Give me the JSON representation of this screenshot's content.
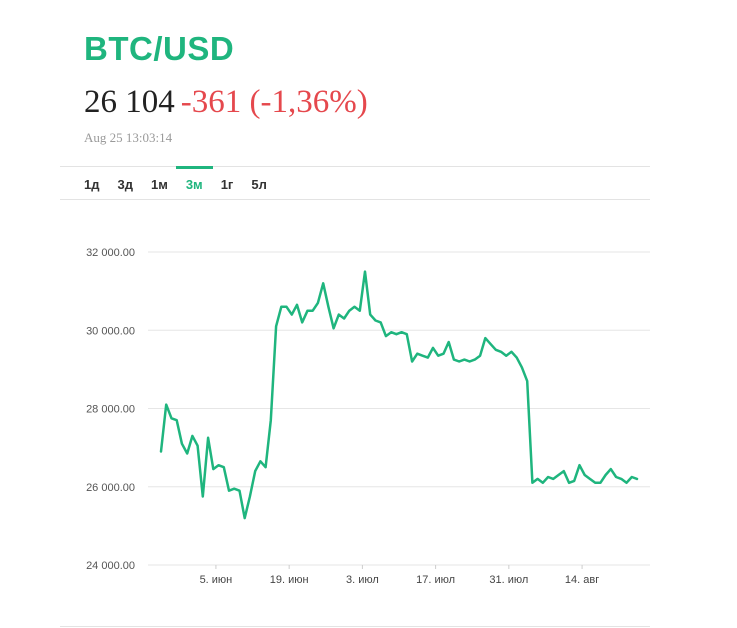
{
  "header": {
    "pair": "BTC/USD",
    "price": "26 104",
    "change": "-361 (-1,36%)",
    "timestamp": "Aug 25 13:03:14"
  },
  "tabs": [
    {
      "label": "1д",
      "active": false
    },
    {
      "label": "3д",
      "active": false
    },
    {
      "label": "1м",
      "active": false
    },
    {
      "label": "3м",
      "active": true
    },
    {
      "label": "1г",
      "active": false
    },
    {
      "label": "5л",
      "active": false
    }
  ],
  "colors": {
    "accent": "#1fb57e",
    "negative": "#e5484d",
    "line": "#1fb57e"
  },
  "chart_data": {
    "type": "line",
    "title": "",
    "xlabel": "",
    "ylabel": "",
    "ylim": [
      24000,
      32000
    ],
    "yticks": [
      "24 000.00",
      "26 000.00",
      "28 000.00",
      "30 000.00",
      "32 000.00"
    ],
    "ytick_values": [
      24000,
      26000,
      28000,
      30000,
      32000
    ],
    "xticks": [
      "5. июн",
      "19. июн",
      "3. июл",
      "17. июл",
      "31. июл",
      "14. авг"
    ],
    "xtick_positions": [
      10.5,
      24.5,
      38.5,
      52.5,
      66.5,
      80.5
    ],
    "x_unit": "trading days in the 3-month window",
    "series": [
      {
        "name": "",
        "x": [
          0,
          1,
          2,
          3,
          4,
          5,
          6,
          7,
          8,
          9,
          10,
          11,
          12,
          13,
          14,
          15,
          16,
          17,
          18,
          19,
          20,
          21,
          22,
          23,
          24,
          25,
          26,
          27,
          28,
          29,
          30,
          31,
          32,
          33,
          34,
          35,
          36,
          37,
          38,
          39,
          40,
          41,
          42,
          43,
          44,
          45,
          46,
          47,
          48,
          49,
          50,
          51,
          52,
          53,
          54,
          55,
          56,
          57,
          58,
          59,
          60,
          61,
          62,
          63,
          64,
          65,
          66,
          67,
          68,
          69,
          70,
          71,
          72,
          73,
          74,
          75,
          76,
          77,
          78,
          79,
          80,
          81,
          82,
          83,
          84,
          85,
          86,
          87,
          88,
          89,
          90,
          91
        ],
        "values": [
          26900,
          28100,
          27750,
          27700,
          27100,
          26850,
          27300,
          27050,
          25750,
          27250,
          26450,
          26550,
          26500,
          25900,
          25950,
          25900,
          25200,
          25750,
          26400,
          26650,
          26500,
          27700,
          30100,
          30600,
          30600,
          30400,
          30650,
          30200,
          30500,
          30500,
          30700,
          31200,
          30600,
          30050,
          30400,
          30300,
          30500,
          30600,
          30500,
          31500,
          30400,
          30250,
          30200,
          29850,
          29950,
          29900,
          29950,
          29900,
          29200,
          29400,
          29350,
          29300,
          29550,
          29350,
          29400,
          29700,
          29250,
          29200,
          29250,
          29200,
          29250,
          29350,
          29800,
          29650,
          29500,
          29450,
          29350,
          29450,
          29300,
          29050,
          28700,
          26100,
          26200,
          26100,
          26250,
          26200,
          26300,
          26400,
          26100,
          26150,
          26550,
          26300,
          26200,
          26100,
          26100,
          26300,
          26450,
          26250,
          26200,
          26100,
          26250,
          26200
        ]
      }
    ],
    "grid": true,
    "legend": "none"
  }
}
